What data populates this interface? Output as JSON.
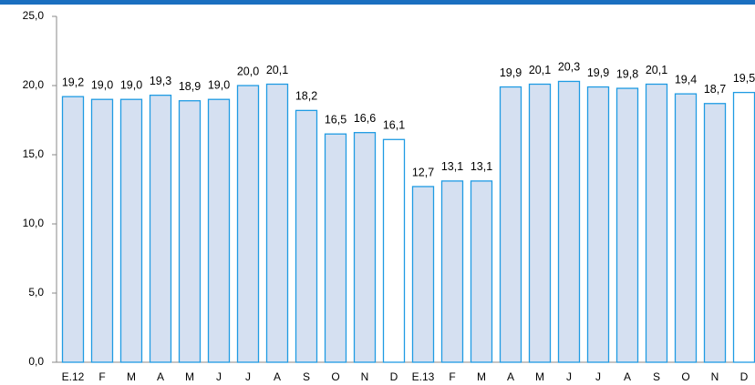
{
  "chart_data": {
    "type": "bar",
    "categories": [
      "E.12",
      "F",
      "M",
      "A",
      "M",
      "J",
      "J",
      "A",
      "S",
      "O",
      "N",
      "D",
      "E.13",
      "F",
      "M",
      "A",
      "M",
      "J",
      "J",
      "A",
      "S",
      "O",
      "N",
      "D"
    ],
    "values": [
      19.2,
      19.0,
      19.0,
      19.3,
      18.9,
      19.0,
      20.0,
      20.1,
      18.2,
      16.5,
      16.6,
      16.1,
      12.7,
      13.1,
      13.1,
      19.9,
      20.1,
      20.3,
      19.9,
      19.8,
      20.1,
      19.4,
      18.7,
      19.5
    ],
    "value_labels": [
      "19,2",
      "19,0",
      "19,0",
      "19,3",
      "18,9",
      "19,0",
      "20,0",
      "20,1",
      "18,2",
      "16,5",
      "16,6",
      "16,1",
      "12,7",
      "13,1",
      "13,1",
      "19,9",
      "20,1",
      "20,3",
      "19,9",
      "19,8",
      "20,1",
      "19,4",
      "18,7",
      "19,5"
    ],
    "colors": [
      "#d5e0f1",
      "#d5e0f1",
      "#d5e0f1",
      "#d5e0f1",
      "#d5e0f1",
      "#d5e0f1",
      "#d5e0f1",
      "#d5e0f1",
      "#d5e0f1",
      "#d5e0f1",
      "#d5e0f1",
      "#ffffff",
      "#d5e0f1",
      "#d5e0f1",
      "#d5e0f1",
      "#d5e0f1",
      "#d5e0f1",
      "#d5e0f1",
      "#d5e0f1",
      "#d5e0f1",
      "#d5e0f1",
      "#d5e0f1",
      "#d5e0f1",
      "#ffffff"
    ],
    "edge_color": "#1f9be3",
    "ylim": [
      0,
      25
    ],
    "yticks": [
      {
        "value": 0,
        "label": "0,0"
      },
      {
        "value": 5,
        "label": "5,0"
      },
      {
        "value": 10,
        "label": "10,0"
      },
      {
        "value": 15,
        "label": "15,0"
      },
      {
        "value": 20,
        "label": "20,0"
      },
      {
        "value": 25,
        "label": "25,0"
      }
    ]
  }
}
